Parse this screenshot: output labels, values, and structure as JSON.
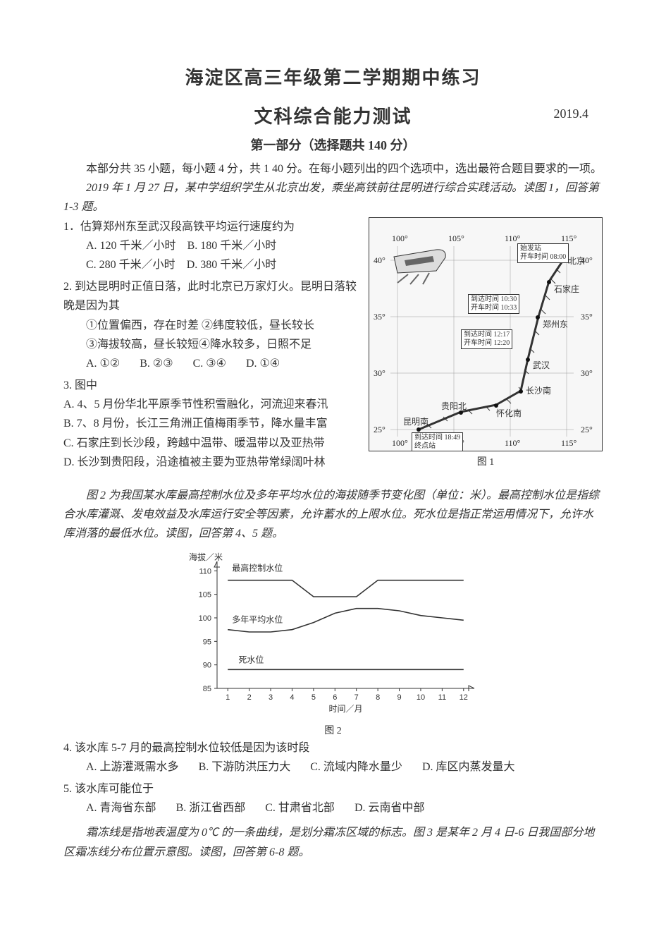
{
  "header": {
    "title_main": "海淀区高三年级第二学期期中练习",
    "title_sub": "文科综合能力测试",
    "date": "2019.4",
    "section": "第一部分（选择题共 140 分）",
    "instructions": "本部分共 35 小题，每小题 4 分，共 1 40 分。在每小题列出的四个选项中，选出最符合题目要求的一项。"
  },
  "context1": "2019 年 1 月 27 日，某中学组织学生从北京出发，乘坐高铁前往昆明进行综合实践活动。读图 1，回答第 1-3 题。",
  "q1": {
    "stem": "1．估算郑州东至武汉段高铁平均运行速度约为",
    "opts": [
      "A. 120 千米／小时",
      "B. 180 千米／小时",
      "C. 280 千米／小时",
      "D. 380 千米／小时"
    ]
  },
  "q2": {
    "stem": "2. 到达昆明时正值日落，此时北京已万家灯火。昆明日落较晚是因为其",
    "lines": [
      "①位置偏西，存在时差 ②纬度较低，昼长较长",
      "③海拔较高，昼长较短④降水较多，日照不足"
    ],
    "opts": [
      "A. ①②",
      "B. ②③",
      "C. ③④",
      "D. ①④"
    ]
  },
  "q3": {
    "stem": "3. 图中",
    "opts": [
      "A. 4、5 月份华北平原季节性积雪融化，河流迎来春汛",
      "B. 7、8 月份，长江三角洲正值梅雨季节，降水量丰富",
      "C. 石家庄到长沙段，跨越中温带、暖温带以及亚热带",
      "D. 长沙到贵阳段，沿途植被主要为亚热带常绿阔叶林"
    ]
  },
  "map": {
    "caption": "图 1",
    "lon_labels": [
      "100°",
      "105°",
      "110°",
      "115°"
    ],
    "lat_labels": [
      "25°",
      "30°",
      "35°",
      "40°"
    ],
    "start_box": "始发站\n开车时间 08:00",
    "arr_sjz": "到达时间 10:30\n开车时间 10:33",
    "arr_zzd": "到达时间 12:17\n开车时间 12:20",
    "arr_km": "到达时间 18:49\n终点站",
    "cities": {
      "bj": "北京",
      "sjz": "石家庄",
      "zzd": "郑州东",
      "wh": "武汉",
      "csn": "长沙南",
      "hhn": "怀化南",
      "gyb": "贵阳北",
      "kmn": "昆明南"
    }
  },
  "context2": "图 2 为我国某水库最高控制水位及多年平均水位的海拔随季节变化图（单位：米）。最高控制水位是指综合水库灌溉、发电效益及水库运行安全等因素，允许蓄水的上限水位。死水位是指正常运用情况下，允许水库消落的最低水位。读图，回答第 4、5 题。",
  "chart": {
    "type": "line",
    "caption": "图 2",
    "x_title": "时间／月",
    "y_title": "海拔／米",
    "x_ticks": [
      1,
      2,
      3,
      4,
      5,
      6,
      7,
      8,
      9,
      10,
      11,
      12
    ],
    "y_ticks": [
      85,
      90,
      95,
      100,
      105,
      110
    ],
    "ylim": [
      85,
      112
    ],
    "xlim": [
      0.5,
      12.5
    ],
    "background_color": "#ffffff",
    "grid_color": "#999999",
    "line_color": "#333333",
    "series": {
      "max_control": {
        "label": "最高控制水位",
        "label_pos": {
          "x": 1.2,
          "y": 110
        },
        "values": [
          {
            "x": 1,
            "y": 108
          },
          {
            "x": 2,
            "y": 108
          },
          {
            "x": 3,
            "y": 108
          },
          {
            "x": 4,
            "y": 108
          },
          {
            "x": 5,
            "y": 104.5
          },
          {
            "x": 6,
            "y": 104.5
          },
          {
            "x": 7,
            "y": 104.5
          },
          {
            "x": 8,
            "y": 108
          },
          {
            "x": 9,
            "y": 108
          },
          {
            "x": 10,
            "y": 108
          },
          {
            "x": 11,
            "y": 108
          },
          {
            "x": 12,
            "y": 108
          }
        ]
      },
      "avg": {
        "label": "多年平均水位",
        "label_pos": {
          "x": 1.2,
          "y": 99
        },
        "values": [
          {
            "x": 1,
            "y": 97.5
          },
          {
            "x": 2,
            "y": 97
          },
          {
            "x": 3,
            "y": 97
          },
          {
            "x": 4,
            "y": 97.5
          },
          {
            "x": 5,
            "y": 99
          },
          {
            "x": 6,
            "y": 101
          },
          {
            "x": 7,
            "y": 102
          },
          {
            "x": 8,
            "y": 102
          },
          {
            "x": 9,
            "y": 101.5
          },
          {
            "x": 10,
            "y": 100.5
          },
          {
            "x": 11,
            "y": 100
          },
          {
            "x": 12,
            "y": 99.5
          }
        ]
      },
      "dead": {
        "label": "死水位",
        "label_pos": {
          "x": 1.5,
          "y": 90.5
        },
        "values": [
          {
            "x": 1,
            "y": 89
          },
          {
            "x": 2,
            "y": 89
          },
          {
            "x": 3,
            "y": 89
          },
          {
            "x": 4,
            "y": 89
          },
          {
            "x": 5,
            "y": 89
          },
          {
            "x": 6,
            "y": 89
          },
          {
            "x": 7,
            "y": 89
          },
          {
            "x": 8,
            "y": 89
          },
          {
            "x": 9,
            "y": 89
          },
          {
            "x": 10,
            "y": 89
          },
          {
            "x": 11,
            "y": 89
          },
          {
            "x": 12,
            "y": 89
          }
        ]
      }
    }
  },
  "q4": {
    "stem": "4. 该水库 5-7 月的最高控制水位较低是因为该时段",
    "opts": [
      "A. 上游灌溉需水多",
      "B. 下游防洪压力大",
      "C. 流域内降水量少",
      "D. 库区内蒸发量大"
    ]
  },
  "q5": {
    "stem": "5. 该水库可能位于",
    "opts": [
      "A. 青海省东部",
      "B. 浙江省西部",
      "C. 甘肃省北部",
      "D. 云南省中部"
    ]
  },
  "context3": "霜冻线是指地表温度为 0℃ 的一条曲线，是划分霜冻区域的标志。图 3 是某年 2 月 4 日-6 日我国部分地区霜冻线分布位置示意图。读图，回答第 6-8 题。"
}
